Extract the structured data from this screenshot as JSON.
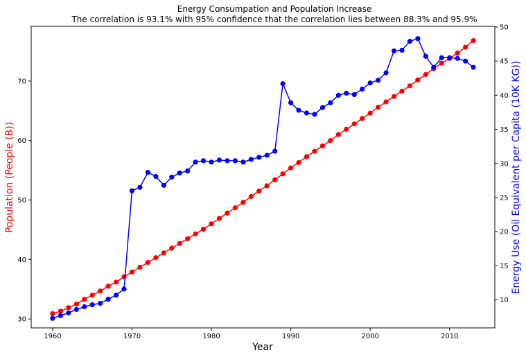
{
  "chart_data": {
    "type": "line",
    "title": "Energy Consumpation and Population Increase",
    "subtitle": "The correlation is 93.1% with 95% confidence that the correlation lies between 88.3% and 95.9%",
    "xlabel": "Year",
    "ylabel_left": "Population (People (B))",
    "ylabel_right": "Energy Use (Oil Equivalent per Capita (10K KG))",
    "xlim": [
      1957.3,
      2015.7
    ],
    "ylim_left": [
      28.5,
      79.2
    ],
    "ylim_right": [
      5.9,
      50.1
    ],
    "xticks": [
      1960,
      1970,
      1980,
      1990,
      2000,
      2010
    ],
    "yticks_left": [
      30,
      40,
      50,
      60,
      70
    ],
    "yticks_right": [
      10,
      15,
      20,
      25,
      30,
      35,
      40,
      45,
      50
    ],
    "grid": false,
    "legend": "none",
    "x": [
      1960,
      1961,
      1962,
      1963,
      1964,
      1965,
      1966,
      1967,
      1968,
      1969,
      1970,
      1971,
      1972,
      1973,
      1974,
      1975,
      1976,
      1977,
      1978,
      1979,
      1980,
      1981,
      1982,
      1983,
      1984,
      1985,
      1986,
      1987,
      1988,
      1989,
      1990,
      1991,
      1992,
      1993,
      1994,
      1995,
      1996,
      1997,
      1998,
      1999,
      2000,
      2001,
      2002,
      2003,
      2004,
      2005,
      2006,
      2007,
      2008,
      2009,
      2010,
      2011,
      2012,
      2013
    ],
    "series": [
      {
        "axis": "left",
        "color": "#ff0000",
        "values": [
          30.9,
          31.3,
          31.9,
          32.5,
          33.3,
          34.0,
          34.7,
          35.5,
          36.2,
          37.1,
          37.9,
          38.7,
          39.5,
          40.3,
          41.1,
          41.9,
          42.7,
          43.5,
          44.3,
          45.1,
          46.0,
          46.9,
          47.8,
          48.7,
          49.6,
          50.6,
          51.5,
          52.4,
          53.4,
          54.4,
          55.4,
          56.3,
          57.3,
          58.2,
          59.1,
          60.0,
          61.0,
          61.9,
          62.8,
          63.7,
          64.6,
          65.6,
          66.5,
          67.4,
          68.3,
          69.2,
          70.2,
          71.1,
          72.1,
          73.0,
          73.8,
          74.7,
          75.7,
          76.8
        ]
      },
      {
        "axis": "right",
        "color": "#0000ff",
        "values": [
          7.3,
          7.7,
          8.1,
          8.6,
          9.0,
          9.3,
          9.5,
          10.1,
          10.7,
          11.6,
          26.0,
          26.5,
          28.7,
          28.1,
          26.8,
          28.0,
          28.6,
          28.9,
          30.2,
          30.4,
          30.2,
          30.5,
          30.4,
          30.4,
          30.2,
          30.6,
          30.9,
          31.2,
          31.8,
          41.7,
          38.9,
          37.8,
          37.4,
          37.2,
          38.2,
          38.9,
          40.0,
          40.3,
          40.1,
          40.9,
          41.8,
          42.2,
          43.3,
          46.5,
          46.6,
          47.9,
          48.3,
          45.7,
          44.1,
          45.5,
          45.5,
          45.4,
          45.0,
          44.1
        ]
      }
    ]
  }
}
